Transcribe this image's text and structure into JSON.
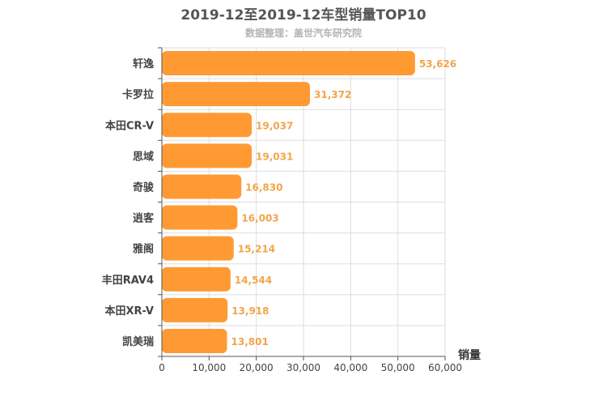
{
  "chart_data": {
    "type": "bar",
    "orientation": "horizontal",
    "title": "2019-12至2019-12车型销量TOP10",
    "subtitle": "数据整理：盖世汽车研究院",
    "xlabel": "销量",
    "ylabel": "",
    "xlim": [
      0,
      60000
    ],
    "ticks": [
      0,
      10000,
      20000,
      30000,
      40000,
      50000,
      60000
    ],
    "tick_labels": [
      "0",
      "10,000",
      "20,000",
      "30,000",
      "40,000",
      "50,000",
      "60,000"
    ],
    "grid": true,
    "bar_color": "#ff9a33",
    "label_color": "#f2a54a",
    "categories": [
      "轩逸",
      "卡罗拉",
      "本田CR-V",
      "思域",
      "奇骏",
      "逍客",
      "雅阁",
      "丰田RAV4",
      "本田XR-V",
      "凯美瑞"
    ],
    "values": [
      53626,
      31372,
      19037,
      19031,
      16830,
      16003,
      15214,
      14544,
      13918,
      13801
    ],
    "value_labels": [
      "53,626",
      "31,372",
      "19,037",
      "19,031",
      "16,830",
      "16,003",
      "15,214",
      "14,544",
      "13,918",
      "13,801"
    ]
  }
}
